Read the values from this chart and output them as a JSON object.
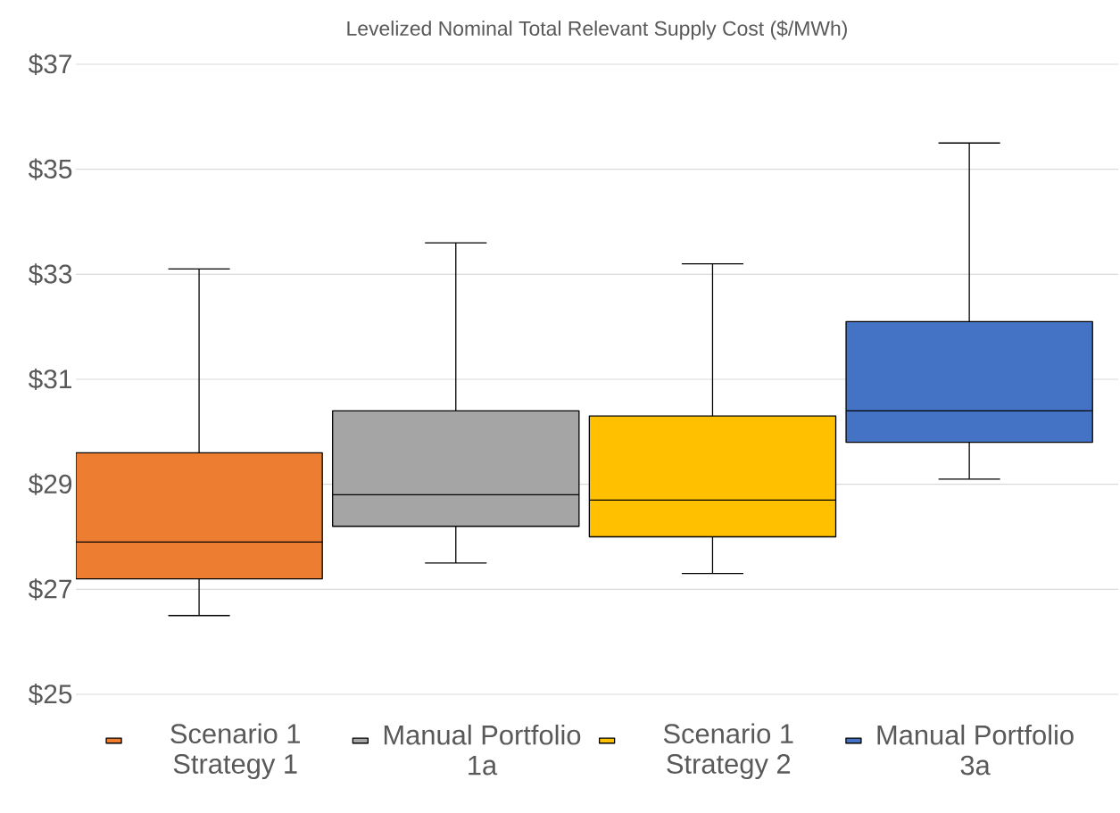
{
  "chart_data": {
    "type": "box",
    "title": "Levelized Nominal Total Relevant Supply Cost ($/MWh)",
    "categories": [
      null
    ],
    "series": [
      {
        "name": "Scenario 1 Strategy 1",
        "color": "#ed7d31",
        "boxes": [
          {
            "low": 26.5,
            "q1": 27.2,
            "median": 27.9,
            "q3": 29.6,
            "high": 33.1
          }
        ]
      },
      {
        "name": "Manual Portfolio 1a",
        "color": "#a5a5a5",
        "boxes": [
          {
            "low": 27.5,
            "q1": 28.2,
            "median": 28.8,
            "q3": 30.4,
            "high": 33.6
          }
        ]
      },
      {
        "name": "Scenario 1 Strategy 2",
        "color": "#ffc000",
        "boxes": [
          {
            "low": 27.3,
            "q1": 28.0,
            "median": 28.7,
            "q3": 30.3,
            "high": 33.2
          }
        ]
      },
      {
        "name": "Manual Portfolio 3a",
        "color": "#4472c4",
        "boxes": [
          {
            "low": 29.1,
            "q1": 29.8,
            "median": 30.4,
            "q3": 32.1,
            "high": 35.5
          }
        ]
      }
    ],
    "ylim": [
      25,
      37
    ],
    "yticks": [
      {
        "value": 25,
        "label": "$25"
      },
      {
        "value": 27,
        "label": "$27"
      },
      {
        "value": 29,
        "label": "$29"
      },
      {
        "value": 31,
        "label": "$31"
      },
      {
        "value": 33,
        "label": "$33"
      },
      {
        "value": 35,
        "label": "$35"
      },
      {
        "value": 37,
        "label": "$37"
      }
    ],
    "grid": "y",
    "legend": "bottom"
  }
}
